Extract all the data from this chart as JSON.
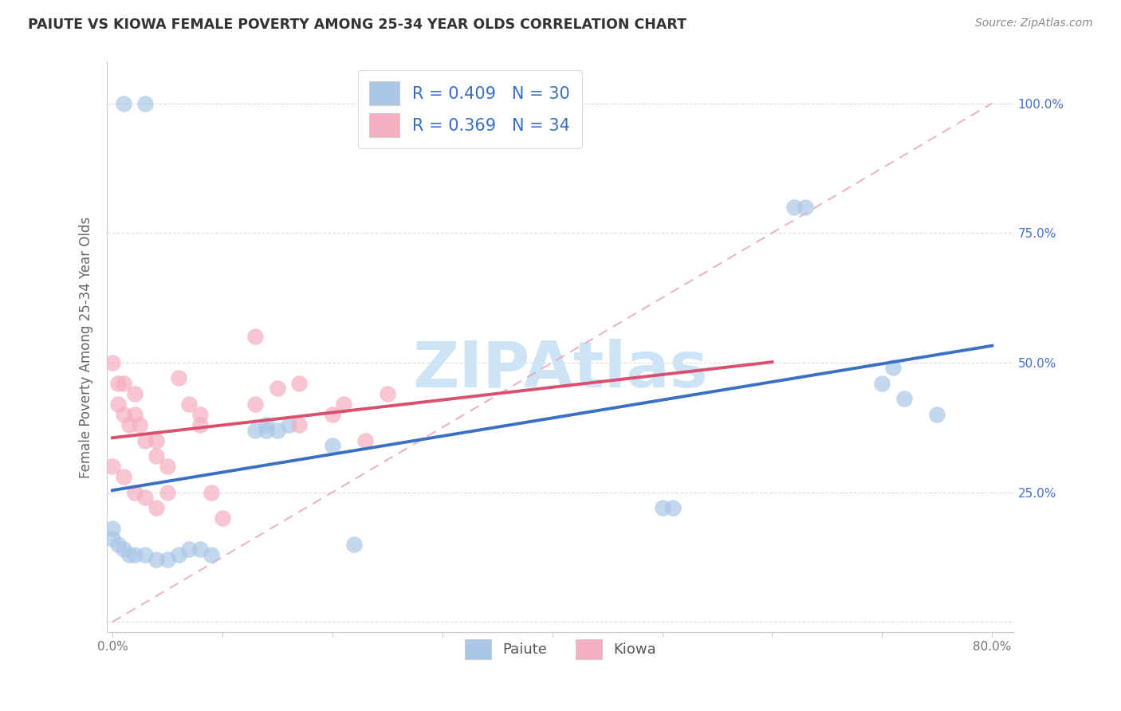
{
  "title": "PAIUTE VS KIOWA FEMALE POVERTY AMONG 25-34 YEAR OLDS CORRELATION CHART",
  "source": "Source: ZipAtlas.com",
  "ylabel": "Female Poverty Among 25-34 Year Olds",
  "xlim": [
    -0.005,
    0.82
  ],
  "ylim": [
    -0.02,
    1.08
  ],
  "xticks": [
    0.0,
    0.1,
    0.2,
    0.3,
    0.4,
    0.5,
    0.6,
    0.7,
    0.8
  ],
  "xticklabels": [
    "0.0%",
    "",
    "",
    "",
    "",
    "",
    "",
    "",
    "80.0%"
  ],
  "yticks": [
    0.0,
    0.25,
    0.5,
    0.75,
    1.0
  ],
  "yticklabels": [
    "",
    "25.0%",
    "50.0%",
    "75.0%",
    "100.0%"
  ],
  "paiute_color": "#aac7e8",
  "kiowa_color": "#f5afc0",
  "paiute_line_color": "#3a6fc4",
  "kiowa_line_color": "#d94f6e",
  "ref_line_color": "#d4a0b0",
  "tick_color": "#4472c4",
  "watermark_color": "#cce4f5",
  "watermark": "ZIPAtlas",
  "paiute_R": 0.409,
  "paiute_N": 30,
  "kiowa_R": 0.369,
  "kiowa_N": 34,
  "paiute_x": [
    0.01,
    0.03,
    0.0,
    0.0,
    0.005,
    0.01,
    0.015,
    0.02,
    0.03,
    0.04,
    0.05,
    0.06,
    0.07,
    0.08,
    0.09,
    0.14,
    0.15,
    0.2,
    0.22,
    0.5,
    0.51,
    0.62,
    0.63,
    0.7,
    0.71,
    0.72,
    0.75,
    0.13,
    0.14,
    0.16
  ],
  "paiute_y": [
    1.0,
    1.0,
    0.18,
    0.16,
    0.15,
    0.14,
    0.13,
    0.13,
    0.13,
    0.12,
    0.12,
    0.13,
    0.14,
    0.14,
    0.13,
    0.37,
    0.37,
    0.34,
    0.15,
    0.22,
    0.22,
    0.8,
    0.8,
    0.46,
    0.49,
    0.43,
    0.4,
    0.37,
    0.38,
    0.38
  ],
  "kiowa_x": [
    0.0,
    0.005,
    0.005,
    0.01,
    0.01,
    0.015,
    0.02,
    0.02,
    0.025,
    0.03,
    0.04,
    0.04,
    0.05,
    0.05,
    0.06,
    0.07,
    0.08,
    0.08,
    0.09,
    0.1,
    0.13,
    0.15,
    0.17,
    0.2,
    0.21,
    0.23,
    0.25,
    0.13,
    0.17,
    0.0,
    0.01,
    0.02,
    0.03,
    0.04
  ],
  "kiowa_y": [
    0.5,
    0.46,
    0.42,
    0.46,
    0.4,
    0.38,
    0.44,
    0.4,
    0.38,
    0.35,
    0.35,
    0.32,
    0.3,
    0.25,
    0.47,
    0.42,
    0.4,
    0.38,
    0.25,
    0.2,
    0.42,
    0.45,
    0.46,
    0.4,
    0.42,
    0.35,
    0.44,
    0.55,
    0.38,
    0.3,
    0.28,
    0.25,
    0.24,
    0.22
  ]
}
